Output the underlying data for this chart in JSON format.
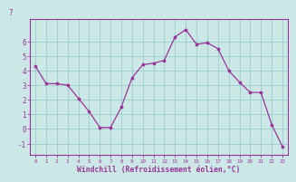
{
  "x": [
    0,
    1,
    2,
    3,
    4,
    5,
    6,
    7,
    8,
    9,
    10,
    11,
    12,
    13,
    14,
    15,
    16,
    17,
    18,
    19,
    20,
    21,
    22,
    23
  ],
  "y": [
    4.3,
    3.1,
    3.1,
    3.0,
    2.1,
    1.2,
    0.1,
    0.1,
    1.5,
    3.5,
    4.4,
    4.5,
    4.7,
    6.3,
    6.8,
    5.8,
    5.9,
    5.5,
    4.0,
    3.2,
    2.5,
    2.5,
    0.3,
    -1.2
  ],
  "line_color": "#993399",
  "marker_color": "#993399",
  "bg_color": "#cce8e6",
  "grid_color": "#99cccc",
  "spine_color": "#993399",
  "tick_label_color": "#993399",
  "xlabel": "Windchill (Refroidissement éolien,°C)",
  "ylim": [
    -1.8,
    7.5
  ],
  "xlim": [
    -0.5,
    23.5
  ],
  "yticks": [
    -1,
    0,
    1,
    2,
    3,
    4,
    5,
    6
  ],
  "xticks": [
    0,
    1,
    2,
    3,
    4,
    5,
    6,
    7,
    8,
    9,
    10,
    11,
    12,
    13,
    14,
    15,
    16,
    17,
    18,
    19,
    20,
    21,
    22,
    23
  ],
  "top_label": "7"
}
